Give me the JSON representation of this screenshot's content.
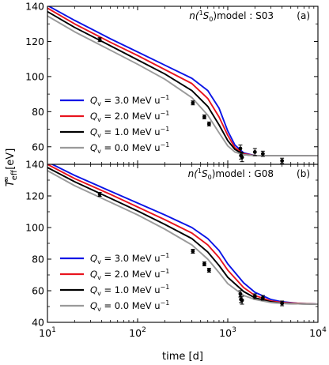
{
  "shared": {
    "xlabel": "time [d]",
    "ylabel_main": "T",
    "ylabel_sub": "eff",
    "ylabel_sup": "∞",
    "ylabel_unit": " [eV]",
    "x_scale": "log",
    "xlim": [
      10,
      10000
    ],
    "x_ticks": [
      10,
      100,
      1000,
      10000
    ],
    "x_tick_labels": [
      {
        "base": "10",
        "exp": "1"
      },
      {
        "base": "10",
        "exp": "2"
      },
      {
        "base": "10",
        "exp": "3"
      },
      {
        "base": "10",
        "exp": "4"
      }
    ],
    "legend_unit_text": "MeV u",
    "legend_unit_exp": "−1",
    "legend_placement": "lower-left"
  },
  "series_style": [
    {
      "color": "#0a14e6"
    },
    {
      "color": "#e8141e"
    },
    {
      "color": "#000000"
    },
    {
      "color": "#9a9a9a"
    }
  ],
  "chart_data": [
    {
      "type": "line",
      "panel_label": "(a)",
      "model_prefix": "n(",
      "model_state": "S",
      "model_state_sup": "1",
      "model_state_sub": "0",
      "model_suffix": ")model : S03",
      "ylim": [
        50,
        140
      ],
      "y_ticks": [
        60,
        80,
        100,
        120,
        140
      ],
      "y_tick_labels": [
        "60",
        "80",
        "100",
        "120",
        "140"
      ],
      "series": [
        {
          "name_sym": "Q",
          "name_sub": "v",
          "name_val": " = 3.0 ",
          "x": [
            10,
            20,
            50,
            100,
            200,
            400,
            600,
            800,
            1000,
            1200,
            1500,
            2000,
            3000,
            5000,
            10000
          ],
          "y": [
            140.5,
            132,
            121.5,
            114,
            106.5,
            99,
            92,
            82,
            69,
            61,
            56.5,
            55,
            55,
            55,
            55
          ]
        },
        {
          "name_sym": "Q",
          "name_sub": "v",
          "name_val": " = 2.0 ",
          "x": [
            10,
            20,
            50,
            100,
            200,
            400,
            600,
            800,
            1000,
            1200,
            1500,
            2000,
            3000,
            5000,
            10000
          ],
          "y": [
            139,
            130,
            119.5,
            112,
            104,
            96,
            87.5,
            77,
            66.5,
            59.5,
            56,
            55,
            55,
            55,
            55
          ]
        },
        {
          "name_sym": "Q",
          "name_sub": "v",
          "name_val": " = 1.0 ",
          "x": [
            10,
            20,
            50,
            100,
            200,
            400,
            600,
            800,
            1000,
            1200,
            1500,
            2000,
            3000,
            5000,
            10000
          ],
          "y": [
            137,
            128,
            117.5,
            109.5,
            101.5,
            92,
            83,
            72.5,
            63.5,
            58.5,
            55.5,
            55,
            55,
            55,
            55
          ]
        },
        {
          "name_sym": "Q",
          "name_sub": "v",
          "name_val": " = 0.0 ",
          "x": [
            10,
            20,
            50,
            100,
            200,
            400,
            600,
            800,
            1000,
            1200,
            1500,
            2000,
            3000,
            5000,
            10000
          ],
          "y": [
            134.5,
            125.5,
            115,
            107,
            98.5,
            88,
            78,
            68,
            60.5,
            57,
            55.5,
            55,
            55,
            55,
            55
          ]
        }
      ],
      "observations": [
        {
          "x": 38,
          "y": 121,
          "err": 1
        },
        {
          "x": 410,
          "y": 85,
          "err": 1
        },
        {
          "x": 550,
          "y": 77,
          "err": 1
        },
        {
          "x": 620,
          "y": 73,
          "err": 1
        },
        {
          "x": 1380,
          "y": 59,
          "err": 2
        },
        {
          "x": 1400,
          "y": 55,
          "err": 2
        },
        {
          "x": 1440,
          "y": 54,
          "err": 2.5
        },
        {
          "x": 2000,
          "y": 57,
          "err": 2
        },
        {
          "x": 2450,
          "y": 56,
          "err": 1.5
        },
        {
          "x": 4000,
          "y": 52,
          "err": 1.5
        }
      ]
    },
    {
      "type": "line",
      "panel_label": "(b)",
      "model_prefix": "n(",
      "model_state": "S",
      "model_state_sup": "1",
      "model_state_sub": "0",
      "model_suffix": ")model : G08",
      "ylim": [
        40,
        140
      ],
      "y_ticks": [
        40,
        60,
        80,
        100,
        120,
        140
      ],
      "y_tick_labels": [
        "40",
        "60",
        "80",
        "100",
        "120",
        "140"
      ],
      "series": [
        {
          "name_sym": "Q",
          "name_sub": "v",
          "name_val": " = 3.0 ",
          "x": [
            10,
            20,
            50,
            100,
            200,
            400,
            600,
            800,
            1000,
            1500,
            2000,
            3000,
            4000,
            6000,
            10000
          ],
          "y": [
            141.5,
            133,
            123,
            115.5,
            108,
            100,
            93,
            85.5,
            77,
            65,
            59,
            54.5,
            53,
            52,
            51.5
          ]
        },
        {
          "name_sym": "Q",
          "name_sub": "v",
          "name_val": " = 2.0 ",
          "x": [
            10,
            20,
            50,
            100,
            200,
            400,
            600,
            800,
            1000,
            1500,
            2000,
            3000,
            4000,
            6000,
            10000
          ],
          "y": [
            140,
            131,
            121,
            113,
            105,
            96.5,
            89,
            81,
            73,
            62,
            57,
            53.5,
            52.5,
            52,
            51.5
          ]
        },
        {
          "name_sym": "Q",
          "name_sub": "v",
          "name_val": " = 1.0 ",
          "x": [
            10,
            20,
            50,
            100,
            200,
            400,
            600,
            800,
            1000,
            1500,
            2000,
            3000,
            4000,
            6000,
            10000
          ],
          "y": [
            138,
            129,
            118.5,
            110.5,
            102,
            93,
            84.5,
            76,
            68.5,
            59.5,
            55.5,
            53,
            52,
            51.7,
            51.5
          ]
        },
        {
          "name_sym": "Q",
          "name_sub": "v",
          "name_val": " = 0.0 ",
          "x": [
            10,
            20,
            50,
            100,
            200,
            400,
            600,
            800,
            1000,
            1500,
            2000,
            3000,
            4000,
            6000,
            10000
          ],
          "y": [
            136,
            126.5,
            116,
            108,
            99,
            89,
            80,
            71.5,
            64.5,
            57,
            54.5,
            52.5,
            52,
            51.7,
            51.5
          ]
        }
      ],
      "observations": [
        {
          "x": 38,
          "y": 121,
          "err": 1
        },
        {
          "x": 410,
          "y": 85,
          "err": 1
        },
        {
          "x": 550,
          "y": 77,
          "err": 1
        },
        {
          "x": 620,
          "y": 73,
          "err": 1
        },
        {
          "x": 1380,
          "y": 58,
          "err": 2
        },
        {
          "x": 1400,
          "y": 54.5,
          "err": 2
        },
        {
          "x": 1440,
          "y": 54,
          "err": 2.5
        },
        {
          "x": 2000,
          "y": 56.5,
          "err": 1.5
        },
        {
          "x": 2450,
          "y": 55.5,
          "err": 1.5
        },
        {
          "x": 4000,
          "y": 52,
          "err": 1.5
        }
      ]
    }
  ]
}
